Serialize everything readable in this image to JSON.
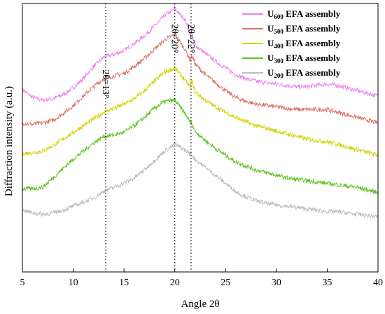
{
  "chart_data": {
    "type": "line",
    "xlabel": "Angle 2θ",
    "ylabel": "Diffraction intensity (a.u.)",
    "xlim": [
      5,
      40
    ],
    "ylim": [
      0,
      100
    ],
    "xticks": [
      5,
      10,
      15,
      20,
      25,
      30,
      35,
      40
    ],
    "show_y_ticks": false,
    "grid": false,
    "legend_position": "top-right",
    "reference_lines": [
      {
        "x": 13.2,
        "label": "2θ=13°"
      },
      {
        "x": 20.0,
        "label": "2θ=20°"
      },
      {
        "x": 21.6,
        "label": "2θ=22°"
      }
    ],
    "series": [
      {
        "name_main": "U",
        "name_sub": "600",
        "name_rest": " EFA assembly",
        "color": "#ee82ee",
        "x": [
          5,
          6,
          7,
          8,
          9,
          10,
          11,
          12,
          13,
          14,
          15,
          16,
          17,
          18,
          19,
          20,
          21,
          21.5,
          21.7,
          22,
          23,
          24,
          25,
          26,
          27,
          28,
          29,
          30,
          31,
          32,
          33,
          34,
          35,
          36,
          37,
          38,
          39,
          40
        ],
        "y": [
          68,
          65,
          64,
          64.5,
          66,
          68.5,
          72,
          76.5,
          80,
          81,
          82.5,
          85,
          88,
          91.5,
          95.5,
          98,
          94,
          89,
          87,
          84.5,
          81.5,
          78.5,
          76,
          73.5,
          72,
          71,
          70.5,
          70,
          69.5,
          69,
          69,
          69.5,
          70,
          69.5,
          68.5,
          67.5,
          66.5,
          65.5
        ]
      },
      {
        "name_main": "U",
        "name_sub": "500",
        "name_rest": " EFA assembly",
        "color": "#dc7068",
        "x": [
          5,
          6,
          7,
          8,
          9,
          10,
          11,
          12,
          13,
          14,
          15,
          16,
          17,
          18,
          19,
          20,
          21,
          21.5,
          21.7,
          22,
          23,
          24,
          25,
          26,
          27,
          28,
          29,
          30,
          31,
          32,
          33,
          34,
          35,
          36,
          37,
          38,
          39,
          40
        ],
        "y": [
          55.5,
          55,
          55.5,
          56.5,
          59,
          62,
          65.5,
          69,
          72,
          73,
          74,
          76.5,
          79.5,
          83,
          86.5,
          88.5,
          83,
          79,
          80.5,
          77.5,
          73.5,
          70.5,
          67.5,
          65,
          63.5,
          62.5,
          62,
          61.5,
          61,
          60.5,
          60.5,
          60.5,
          60.5,
          59.5,
          58.5,
          57.5,
          56.5,
          55.5
        ]
      },
      {
        "name_main": "U",
        "name_sub": "400",
        "name_rest": " EFA assembly",
        "color": "#d2d200",
        "x": [
          5,
          6,
          7,
          8,
          9,
          10,
          11,
          12,
          13,
          14,
          15,
          16,
          17,
          18,
          19,
          20,
          21,
          21.5,
          21.7,
          22,
          23,
          24,
          25,
          26,
          27,
          28,
          29,
          30,
          31,
          32,
          33,
          34,
          35,
          36,
          37,
          38,
          39,
          40
        ],
        "y": [
          44,
          44.5,
          45,
          47,
          49.5,
          52,
          54.5,
          57,
          59.5,
          61,
          62.5,
          64.5,
          67.5,
          71,
          74.5,
          76,
          71.5,
          69,
          71,
          67,
          64,
          61.5,
          59.5,
          57.5,
          56,
          54.5,
          53.5,
          52.5,
          51.5,
          50.5,
          49.5,
          49,
          48.5,
          47.5,
          46.5,
          45.5,
          44.5,
          43.5
        ]
      },
      {
        "name_main": "U",
        "name_sub": "300",
        "name_rest": " EFA assembly",
        "color": "#5cc31e",
        "x": [
          5,
          6,
          7,
          8,
          9,
          10,
          11,
          12,
          13,
          14,
          15,
          16,
          17,
          18,
          19,
          20,
          21,
          21.5,
          21.7,
          22,
          23,
          24,
          25,
          26,
          27,
          28,
          29,
          30,
          31,
          32,
          33,
          34,
          35,
          36,
          37,
          38,
          39,
          40
        ],
        "y": [
          31,
          31,
          31.5,
          35,
          38.5,
          42,
          45,
          48,
          50.5,
          51,
          52,
          54.5,
          57.5,
          61,
          63.5,
          64,
          59,
          56,
          55,
          52.5,
          49,
          46,
          43.5,
          41,
          39.5,
          38,
          37,
          36,
          35,
          34.5,
          34,
          33.5,
          33,
          32.5,
          32,
          31.5,
          30.5,
          29.5
        ]
      },
      {
        "name_main": "U",
        "name_sub": "200",
        "name_rest": " EFA assembly",
        "color": "#bcbcbc",
        "x": [
          5,
          6,
          7,
          8,
          9,
          10,
          11,
          12,
          13,
          14,
          15,
          16,
          17,
          18,
          19,
          20,
          21,
          21.5,
          21.7,
          22,
          23,
          24,
          25,
          26,
          27,
          28,
          29,
          30,
          31,
          32,
          33,
          34,
          35,
          36,
          37,
          38,
          39,
          40
        ],
        "y": [
          23,
          22,
          21.5,
          22,
          23,
          24.5,
          26,
          27.5,
          30,
          31.5,
          33,
          35,
          38,
          41.5,
          45,
          47.5,
          45.5,
          44,
          43.5,
          42,
          39,
          36,
          33,
          30,
          28,
          26.5,
          25.5,
          25,
          24.5,
          24,
          23.5,
          23,
          22.5,
          22.5,
          22,
          21.5,
          21,
          20.5
        ]
      }
    ]
  }
}
